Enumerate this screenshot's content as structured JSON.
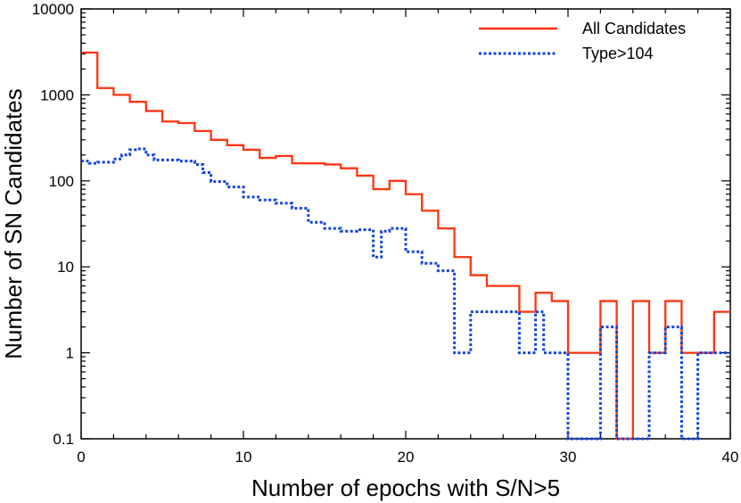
{
  "chart_data": {
    "type": "line",
    "step": true,
    "xlabel": "Number of epochs with S/N>5",
    "ylabel": "Number of SN Candidates",
    "xlim": [
      0,
      40
    ],
    "ylim": [
      0.1,
      10000
    ],
    "yscale": "log",
    "x_ticks": [
      0,
      10,
      20,
      30,
      40
    ],
    "x_tick_labels": [
      "0",
      "10",
      "20",
      "30",
      "40"
    ],
    "y_ticks": [
      0.1,
      1,
      10,
      100,
      1000,
      10000
    ],
    "y_tick_labels": [
      "0.1",
      "1",
      "10",
      "100",
      "1000",
      "10000"
    ],
    "legend_position": "top-right",
    "series": [
      {
        "name": "All Candidates",
        "color": "#ff3311",
        "style": "solid",
        "bins": [
          0,
          1,
          2,
          3,
          4,
          5,
          6,
          7,
          8,
          9,
          10,
          11,
          12,
          13,
          14,
          15,
          16,
          17,
          18,
          19,
          20,
          21,
          22,
          23,
          24,
          25,
          26,
          27,
          28,
          29,
          30,
          31,
          32,
          33,
          34,
          35,
          36,
          37,
          38,
          39
        ],
        "values": [
          3100,
          1200,
          1000,
          830,
          650,
          490,
          470,
          380,
          300,
          260,
          230,
          185,
          195,
          160,
          160,
          155,
          140,
          115,
          80,
          100,
          70,
          45,
          28,
          13,
          8,
          6,
          6,
          3,
          5,
          4,
          1,
          1,
          4,
          0.1,
          4,
          1,
          4,
          1,
          1,
          3
        ]
      },
      {
        "name": "Type>104",
        "color": "#1144dd",
        "style": "dotted",
        "bins": [
          0,
          0.5,
          1,
          2,
          2.5,
          3,
          3.5,
          4,
          4.5,
          5,
          6,
          7,
          7.5,
          8,
          9,
          10,
          11,
          12,
          13,
          14,
          15,
          16,
          17,
          18,
          18.5,
          19,
          20,
          21,
          22,
          23,
          24,
          25,
          26,
          27,
          28,
          28.5,
          29,
          30,
          31,
          32,
          33,
          34,
          35,
          36,
          37,
          38,
          39
        ],
        "values": [
          170,
          160,
          165,
          180,
          200,
          230,
          235,
          200,
          175,
          175,
          170,
          155,
          125,
          98,
          85,
          65,
          60,
          55,
          48,
          33,
          28,
          26,
          27,
          13,
          26,
          28,
          15,
          11,
          9,
          1,
          3,
          3,
          3,
          1,
          3,
          1,
          1,
          0.1,
          0.1,
          2,
          0.1,
          0.1,
          1,
          2,
          0.1,
          1,
          1
        ]
      }
    ]
  }
}
